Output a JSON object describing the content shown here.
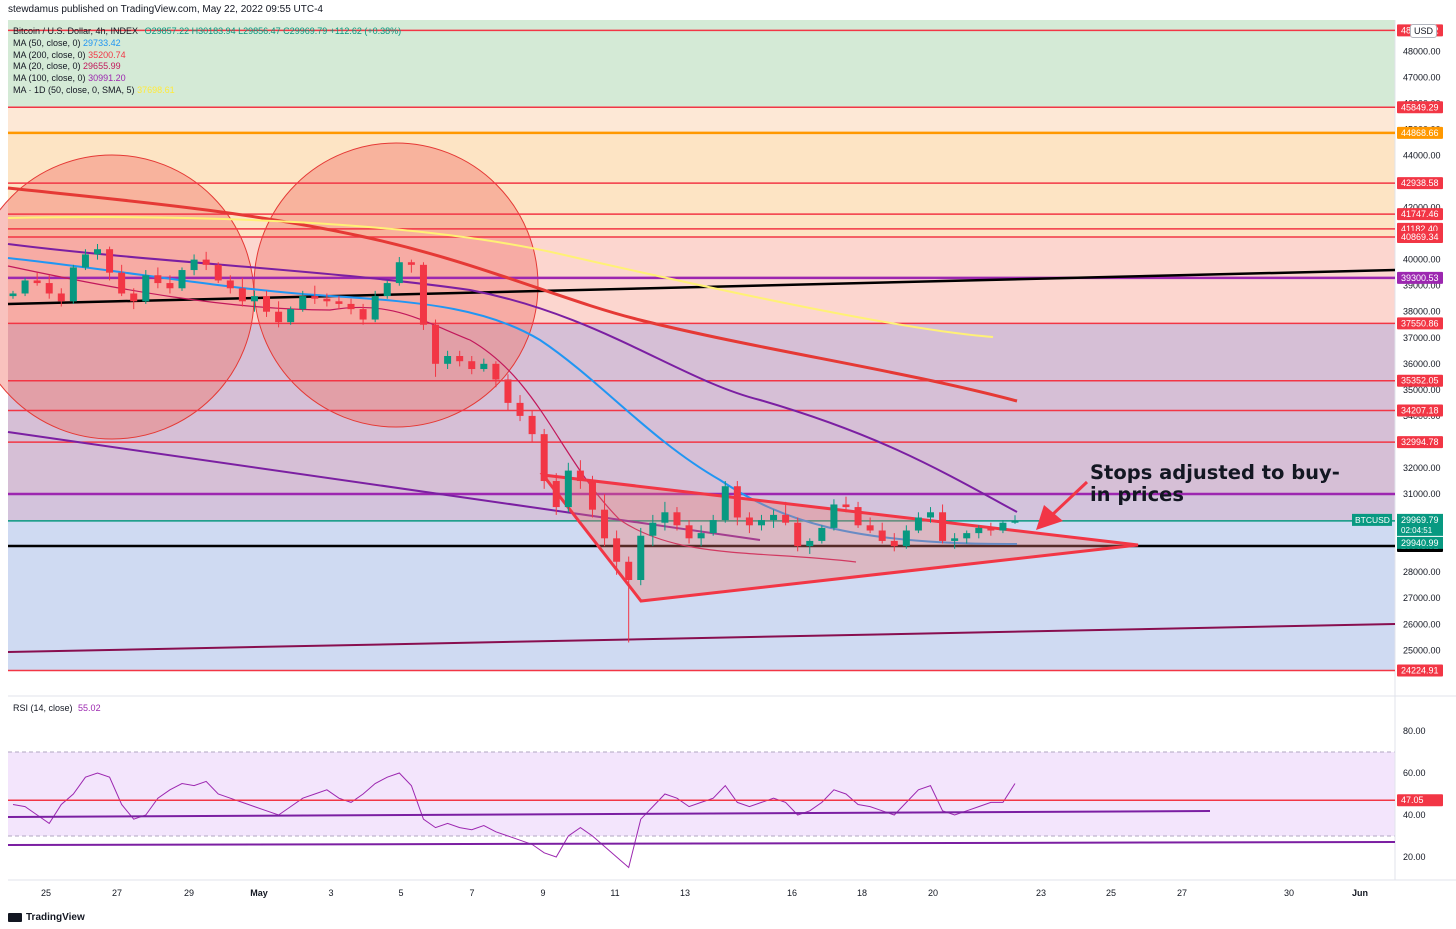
{
  "header": {
    "attribution": "stewdamus published on TradingView.com, May 22, 2022 09:55 UTC-4",
    "usd": "USD",
    "footer_logo": "TradingView"
  },
  "legend": {
    "symbol": "Bitcoin / U.S. Dollar, 4h, INDEX",
    "ohlc": "O29857.22  H30183.94  L29856.47  C29969.79  +112.62 (+0.38%)",
    "indicators": [
      {
        "label": "MA (50, close, 0)",
        "value": "29733.42",
        "color": "#2196f3"
      },
      {
        "label": "MA (200, close, 0)",
        "value": "35200.74",
        "color": "#f23645"
      },
      {
        "label": "MA (20, close, 0)",
        "value": "29655.99",
        "color": "#c2185b"
      },
      {
        "label": "MA (100, close, 0)",
        "value": "30991.20",
        "color": "#9c27b0"
      },
      {
        "label": "MA · 1D (50, close, 0, SMA, 5)",
        "value": "37698.61",
        "color": "#ffeb3b"
      }
    ]
  },
  "annotation": "Stops adjusted to buy-in prices",
  "rsi_label": {
    "title": "RSI (14, close)",
    "value": "55.02"
  },
  "chart_data": {
    "type": "candlestick",
    "ylim": [
      23400,
      49200
    ],
    "price_ticks": [
      "48000.00",
      "47000.00",
      "46000.00",
      "45000.00",
      "44000.00",
      "43000.00",
      "42000.00",
      "41000.00",
      "40000.00",
      "39000.00",
      "38000.00",
      "37000.00",
      "36000.00",
      "35000.00",
      "34000.00",
      "33000.00",
      "32000.00",
      "31000.00",
      "30000.00",
      "29000.00",
      "28000.00",
      "27000.00",
      "26000.00",
      "25000.00"
    ],
    "rsi_ticks": [
      "80.00",
      "60.00",
      "40.00",
      "20.00"
    ],
    "x_ticks": [
      "25",
      "27",
      "29",
      "May",
      "3",
      "5",
      "7",
      "9",
      "11",
      "13",
      "16",
      "18",
      "20",
      "23",
      "25",
      "27",
      "30",
      "Jun"
    ],
    "levels": [
      {
        "value": 48800,
        "label": "48800.82",
        "color": "#f23645"
      },
      {
        "value": 45849.29,
        "label": "45849.29",
        "color": "#f23645"
      },
      {
        "value": 44868.66,
        "label": "44868.66",
        "color": "#ff9800"
      },
      {
        "value": 42938.58,
        "label": "42938.58",
        "color": "#f23645"
      },
      {
        "value": 41747.46,
        "label": "41747.46",
        "color": "#f23645"
      },
      {
        "value": 41182.4,
        "label": "41182.40",
        "color": "#f23645"
      },
      {
        "value": 40869.34,
        "label": "40869.34",
        "color": "#f23645"
      },
      {
        "value": 39300.53,
        "label": "39300.53",
        "color": "#9c27b0"
      },
      {
        "value": 37550.86,
        "label": "37550.86",
        "color": "#f23645"
      },
      {
        "value": 35352.05,
        "label": "35352.05",
        "color": "#f23645"
      },
      {
        "value": 34207.18,
        "label": "34207.18",
        "color": "#f23645"
      },
      {
        "value": 32994.78,
        "label": "32994.78",
        "color": "#f23645"
      },
      {
        "value": 31000,
        "label": "",
        "color": "#9c27b0"
      },
      {
        "value": 29005.52,
        "label": "29005.52",
        "color": "#000000"
      },
      {
        "value": 24224.91,
        "label": "24224.91",
        "color": "#f23645"
      }
    ],
    "current_price": {
      "symbol": "BTCUSD",
      "value": 29969.79,
      "label": "29969.79",
      "countdown": "02:04:51",
      "ma_label": "29940.99"
    },
    "rsi_level": {
      "value": 47.05,
      "label": "47.05"
    },
    "candles": [
      [
        38600,
        38800,
        38500,
        38700
      ],
      [
        38700,
        39300,
        38600,
        39200
      ],
      [
        39200,
        39500,
        39000,
        39100
      ],
      [
        39100,
        39400,
        38500,
        38700
      ],
      [
        38700,
        38900,
        38200,
        38400
      ],
      [
        38400,
        39800,
        38300,
        39700
      ],
      [
        39700,
        40400,
        39600,
        40200
      ],
      [
        40200,
        40600,
        40000,
        40400
      ],
      [
        40400,
        40500,
        39200,
        39500
      ],
      [
        39500,
        39800,
        38600,
        38700
      ],
      [
        38700,
        38900,
        38100,
        38400
      ],
      [
        38400,
        39600,
        38300,
        39400
      ],
      [
        39400,
        39700,
        38900,
        39100
      ],
      [
        39100,
        39400,
        38700,
        38900
      ],
      [
        38900,
        39700,
        38800,
        39600
      ],
      [
        39600,
        40200,
        39400,
        40000
      ],
      [
        40000,
        40300,
        39600,
        39800
      ],
      [
        39800,
        39900,
        39100,
        39200
      ],
      [
        39200,
        39400,
        38700,
        38900
      ],
      [
        38900,
        39300,
        38200,
        38400
      ],
      [
        38400,
        38800,
        38000,
        38600
      ],
      [
        38600,
        38800,
        37800,
        38000
      ],
      [
        38000,
        38400,
        37400,
        37600
      ],
      [
        37600,
        38200,
        37500,
        38100
      ],
      [
        38100,
        38800,
        38000,
        38600
      ],
      [
        38600,
        39000,
        38300,
        38500
      ],
      [
        38500,
        38700,
        38200,
        38400
      ],
      [
        38400,
        38600,
        38100,
        38300
      ],
      [
        38300,
        38500,
        37900,
        38100
      ],
      [
        38100,
        38300,
        37500,
        37700
      ],
      [
        37700,
        38800,
        37600,
        38600
      ],
      [
        38600,
        39200,
        38500,
        39100
      ],
      [
        39100,
        40100,
        39000,
        39900
      ],
      [
        39900,
        40000,
        39500,
        39800
      ],
      [
        39800,
        39900,
        37300,
        37500
      ],
      [
        37500,
        37700,
        35500,
        36000
      ],
      [
        36000,
        36500,
        35800,
        36300
      ],
      [
        36300,
        36500,
        35900,
        36100
      ],
      [
        36100,
        36300,
        35600,
        35800
      ],
      [
        35800,
        36200,
        35700,
        36000
      ],
      [
        36000,
        36100,
        35100,
        35400
      ],
      [
        35400,
        35600,
        34200,
        34500
      ],
      [
        34500,
        34800,
        33800,
        34000
      ],
      [
        34000,
        34200,
        33000,
        33300
      ],
      [
        33300,
        33500,
        31200,
        31500
      ],
      [
        31500,
        31800,
        30200,
        30500
      ],
      [
        30500,
        32200,
        30300,
        31900
      ],
      [
        31900,
        32300,
        31200,
        31500
      ],
      [
        31500,
        31700,
        30100,
        30400
      ],
      [
        30400,
        31000,
        29000,
        29300
      ],
      [
        29300,
        29600,
        27900,
        28400
      ],
      [
        28400,
        28600,
        25300,
        27700
      ],
      [
        27700,
        29700,
        27500,
        29400
      ],
      [
        29400,
        30200,
        29000,
        29900
      ],
      [
        29900,
        30700,
        29600,
        30300
      ],
      [
        30300,
        30500,
        29600,
        29800
      ],
      [
        29800,
        30000,
        29100,
        29300
      ],
      [
        29300,
        29800,
        29000,
        29500
      ],
      [
        29500,
        30200,
        29400,
        30000
      ],
      [
        30000,
        31500,
        29900,
        31300
      ],
      [
        31300,
        31500,
        29800,
        30100
      ],
      [
        30100,
        30300,
        29500,
        29800
      ],
      [
        29800,
        30200,
        29600,
        30000
      ],
      [
        30000,
        30400,
        29700,
        30200
      ],
      [
        30200,
        30700,
        29800,
        29900
      ],
      [
        29900,
        30100,
        28800,
        29000
      ],
      [
        29000,
        29300,
        28700,
        29200
      ],
      [
        29200,
        29800,
        29100,
        29700
      ],
      [
        29700,
        30800,
        29600,
        30600
      ],
      [
        30600,
        30900,
        30300,
        30500
      ],
      [
        30500,
        30700,
        29700,
        29800
      ],
      [
        29800,
        30100,
        29500,
        29600
      ],
      [
        29600,
        29900,
        29100,
        29200
      ],
      [
        29200,
        29500,
        28800,
        29000
      ],
      [
        29000,
        29800,
        28900,
        29600
      ],
      [
        29600,
        30300,
        29500,
        30100
      ],
      [
        30100,
        30500,
        29900,
        30300
      ],
      [
        30300,
        30600,
        29100,
        29200
      ],
      [
        29200,
        29500,
        28900,
        29300
      ],
      [
        29300,
        29600,
        29100,
        29500
      ],
      [
        29500,
        29800,
        29300,
        29700
      ],
      [
        29700,
        29900,
        29400,
        29600
      ],
      [
        29600,
        30000,
        29500,
        29900
      ],
      [
        29900,
        30184,
        29856,
        29970
      ]
    ]
  }
}
